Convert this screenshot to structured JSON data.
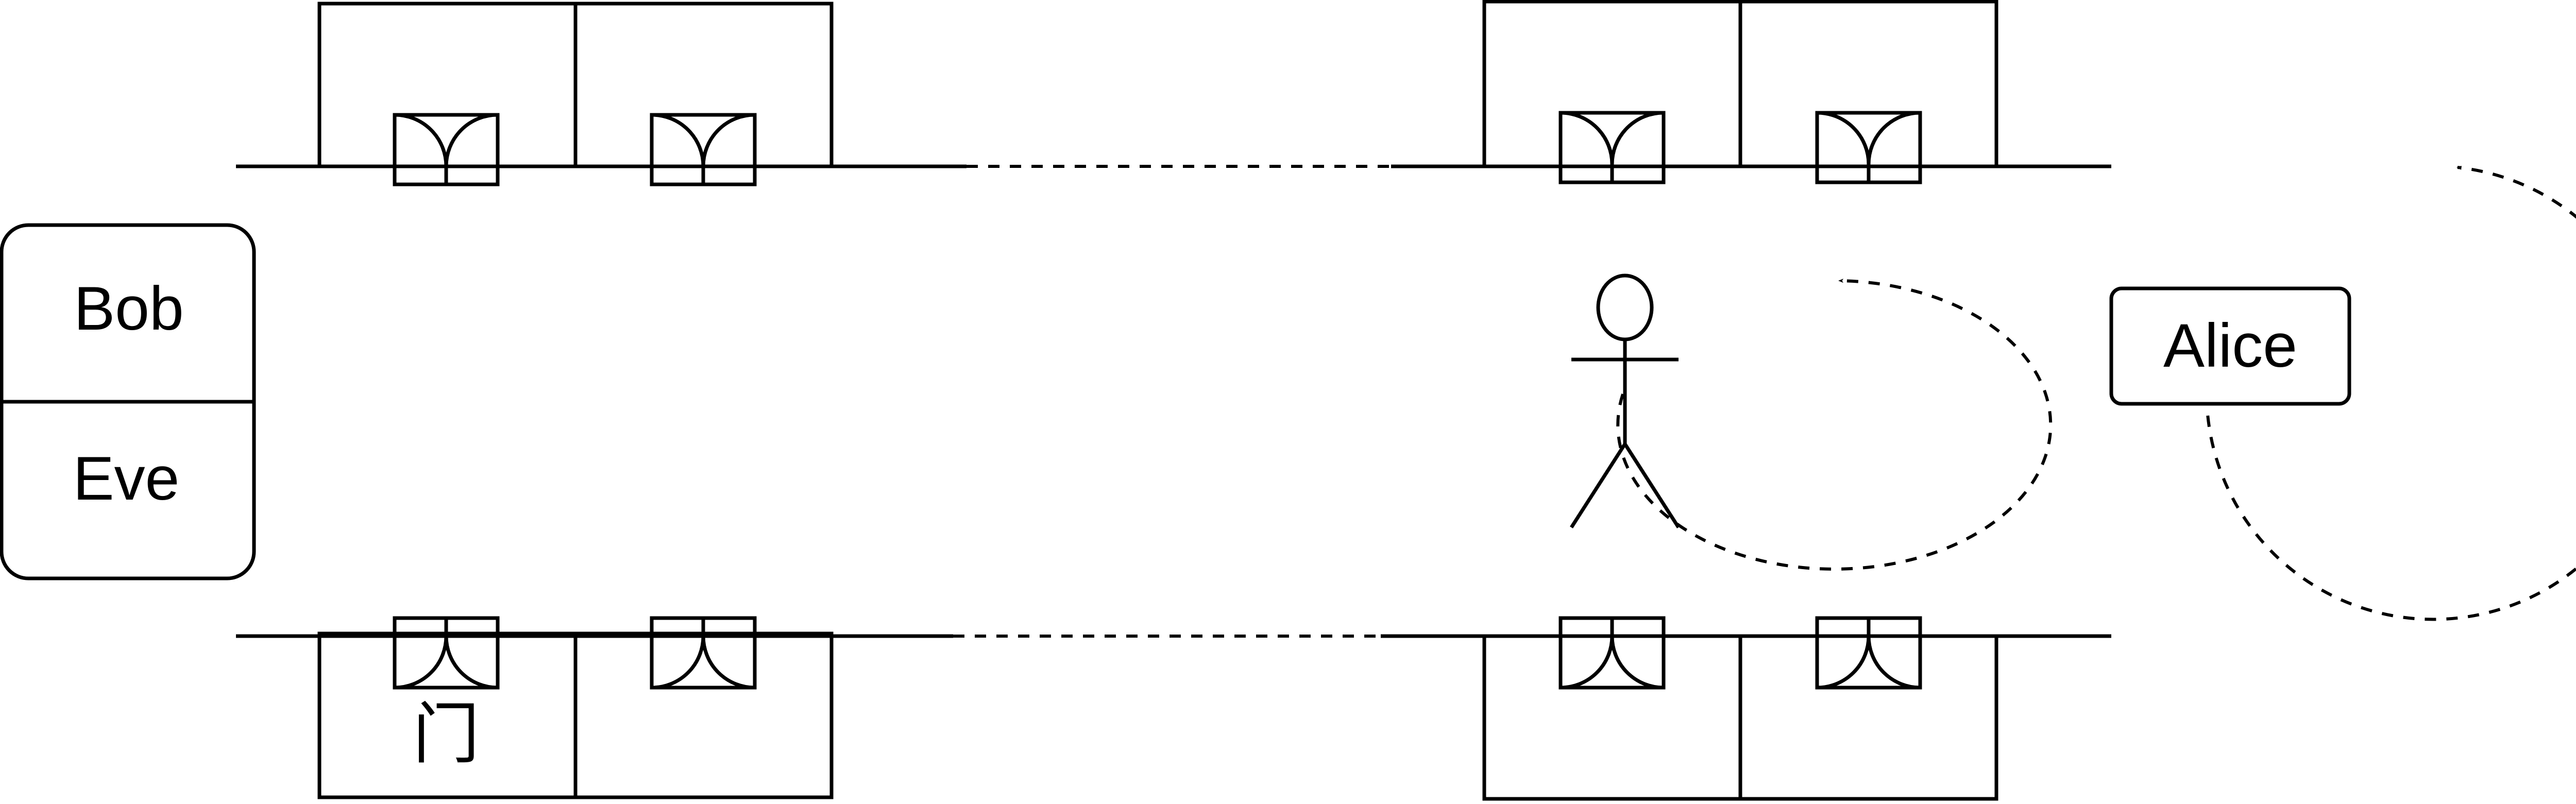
{
  "bus_stack": {
    "top_label": "Bob",
    "bottom_label": "Eve"
  },
  "alice_box": {
    "label": "Alice"
  },
  "door_caption": "门",
  "top_row": {
    "solid_segment_count": 2,
    "room_count": 4,
    "door_count": 4
  },
  "bottom_row": {
    "solid_segment_count": 2,
    "room_count": 4,
    "door_count": 4
  },
  "actor": {
    "shape": "stick-figure"
  },
  "loops": [
    {
      "shape": "ellipse",
      "style": "dashed",
      "arrow": "end"
    },
    {
      "shape": "circle",
      "style": "dashed",
      "arrow": "end"
    }
  ],
  "colors": {
    "stroke": "#000000",
    "background": "#ffffff"
  }
}
